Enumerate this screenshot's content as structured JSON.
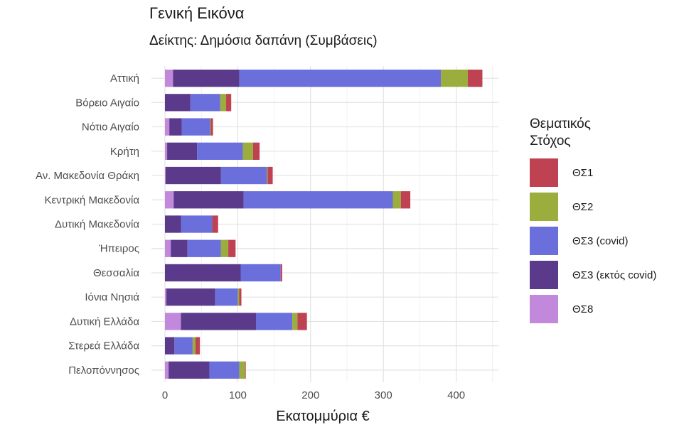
{
  "chart_data": {
    "type": "bar",
    "orientation": "horizontal",
    "stacked": true,
    "title": "Γενική Εικόνα",
    "subtitle": "Δείκτης: Δημόσια δαπάνη (Συμβάσεις)",
    "xlabel": "Εκατομμύρια €",
    "ylabel": "",
    "xlim": [
      0,
      450
    ],
    "x_ticks": [
      0,
      100,
      200,
      300,
      400
    ],
    "grid": true,
    "legend_title": "Θεματικός Στόχος",
    "legend_position": "right",
    "categories": [
      "Αττική",
      "Βόρειο Αιγαίο",
      "Νότιο Αιγαίο",
      "Κρήτη",
      "Αν. Μακεδονία Θράκη",
      "Κεντρική Μακεδονία",
      "Δυτική Μακεδονία",
      "Ήπειρος",
      "Θεσσαλία",
      "Ιόνια Νησιά",
      "Δυτική Ελλάδα",
      "Στερεά Ελλάδα",
      "Πελοπόννησος"
    ],
    "stack_order": [
      "ΘΣ8",
      "ΘΣ3 (εκτός covid)",
      "ΘΣ3 (covid)",
      "ΘΣ2",
      "ΘΣ1"
    ],
    "series": [
      {
        "name": "ΘΣ1",
        "color": "#bf4252",
        "values": [
          20,
          7,
          3,
          9,
          7,
          13,
          8,
          10,
          2,
          3,
          13,
          6,
          1
        ]
      },
      {
        "name": "ΘΣ2",
        "color": "#9aad3d",
        "values": [
          37,
          8,
          1,
          14,
          1,
          11,
          0,
          10,
          0,
          2,
          7,
          4,
          8
        ]
      },
      {
        "name": "ΘΣ3 (covid)",
        "color": "#6b6fdc",
        "values": [
          277,
          41,
          39,
          63,
          63,
          205,
          43,
          46,
          55,
          31,
          50,
          25,
          41
        ]
      },
      {
        "name": "ΘΣ3 (εκτός covid)",
        "color": "#5b3a8c",
        "values": [
          91,
          35,
          17,
          41,
          76,
          96,
          22,
          23,
          104,
          67,
          103,
          13,
          56
        ]
      },
      {
        "name": "ΘΣ8",
        "color": "#c188dc",
        "values": [
          11,
          0,
          6,
          3,
          1,
          12,
          0,
          8,
          0,
          2,
          22,
          0,
          5
        ]
      }
    ]
  }
}
